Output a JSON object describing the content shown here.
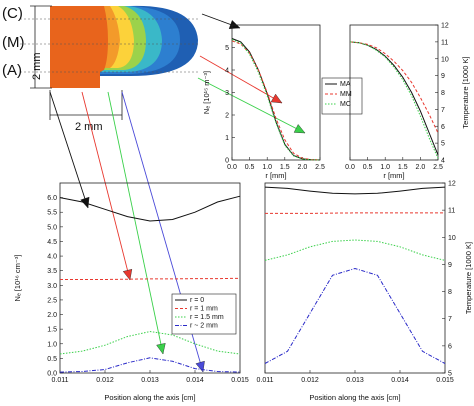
{
  "diagram": {
    "plasma_labels": [
      "(C)",
      "(M)",
      "(A)"
    ],
    "dim_vertical": "2 mm",
    "dim_horizontal": "2 mm",
    "plasma_colors": [
      "#e8641c",
      "#f39a2a",
      "#fcd23a",
      "#9cd24b",
      "#3ab8c8",
      "#2d7fd0",
      "#1f5fb3"
    ],
    "arrow_colors": {
      "black": "#111111",
      "red": "#e8382f",
      "green": "#3ad04a",
      "blue": "#4a4ad8"
    }
  },
  "chart_data": [
    {
      "id": "ne-radial",
      "type": "line",
      "xlabel": "r [mm]",
      "ylabel": "Nₑ [10¹⁵ m⁻³]",
      "xlim": [
        0,
        2.5
      ],
      "ylim": [
        0,
        6
      ],
      "xticks": [
        "0.0",
        "0.5",
        "1.0",
        "1.5",
        "2.0",
        "2.5"
      ],
      "yticks": [
        "0",
        "1",
        "2",
        "3",
        "4",
        "5"
      ],
      "legend": [
        "MA",
        "MM",
        "MC"
      ],
      "series": [
        {
          "name": "MA",
          "color": "#111111",
          "dash": "",
          "x": [
            0,
            0.25,
            0.5,
            0.75,
            1.0,
            1.25,
            1.5,
            1.75,
            2.0,
            2.25,
            2.5
          ],
          "y": [
            5.4,
            5.25,
            4.8,
            4.0,
            2.95,
            1.7,
            0.7,
            0.2,
            0.05,
            0.02,
            0
          ]
        },
        {
          "name": "MM",
          "color": "#e8382f",
          "dash": "3,2",
          "x": [
            0,
            0.25,
            0.5,
            0.75,
            1.0,
            1.25,
            1.5,
            1.75,
            2.0,
            2.25,
            2.5
          ],
          "y": [
            5.3,
            5.15,
            4.75,
            4.0,
            3.0,
            1.85,
            0.9,
            0.3,
            0.08,
            0.02,
            0
          ]
        },
        {
          "name": "MC",
          "color": "#3ad04a",
          "dash": "1.5,1.5",
          "x": [
            0,
            0.25,
            0.5,
            0.75,
            1.0,
            1.25,
            1.5,
            1.75,
            2.0,
            2.25,
            2.5
          ],
          "y": [
            5.35,
            5.2,
            4.7,
            3.9,
            2.85,
            1.65,
            0.65,
            0.18,
            0.04,
            0.01,
            0
          ]
        }
      ]
    },
    {
      "id": "temp-radial",
      "type": "line",
      "xlabel": "r [mm]",
      "ylabel": "Temperature [1000 K]",
      "xlim": [
        0,
        2.5
      ],
      "ylim": [
        4,
        12
      ],
      "xticks": [
        "0.0",
        "0.5",
        "1.0",
        "1.5",
        "2.0",
        "2.5"
      ],
      "yticks": [
        "4",
        "5",
        "6",
        "7",
        "8",
        "9",
        "10",
        "11",
        "12"
      ],
      "series": [
        {
          "name": "MA",
          "color": "#111111",
          "dash": "",
          "x": [
            0,
            0.25,
            0.5,
            0.75,
            1.0,
            1.25,
            1.5,
            1.75,
            2.0,
            2.25,
            2.5
          ],
          "y": [
            11.0,
            10.95,
            10.8,
            10.55,
            10.15,
            9.6,
            8.9,
            8.0,
            6.9,
            5.6,
            4.3
          ]
        },
        {
          "name": "MM",
          "color": "#e8382f",
          "dash": "3,2",
          "x": [
            0,
            0.25,
            0.5,
            0.75,
            1.0,
            1.25,
            1.5,
            1.75,
            2.0,
            2.25,
            2.5
          ],
          "y": [
            11.0,
            10.95,
            10.85,
            10.65,
            10.3,
            9.85,
            9.3,
            8.6,
            7.7,
            6.7,
            5.6
          ]
        },
        {
          "name": "MC",
          "color": "#3ad04a",
          "dash": "1.5,1.5",
          "x": [
            0,
            0.25,
            0.5,
            0.75,
            1.0,
            1.25,
            1.5,
            1.75,
            2.0,
            2.25,
            2.5
          ],
          "y": [
            11.0,
            10.95,
            10.8,
            10.5,
            10.1,
            9.5,
            8.75,
            7.8,
            6.6,
            5.3,
            4.1
          ]
        }
      ]
    },
    {
      "id": "ne-axial",
      "type": "line",
      "xlabel": "Position along the axis [cm]",
      "ylabel": "Nₑ [10¹⁶ cm⁻³]",
      "xlim": [
        0.011,
        0.015
      ],
      "ylim": [
        0,
        6.5
      ],
      "xticks": [
        "0.011",
        "0.012",
        "0.013",
        "0.014",
        "0.015"
      ],
      "yticks": [
        "0.0",
        "0.5",
        "1.0",
        "1.5",
        "2.0",
        "2.5",
        "3.0",
        "3.5",
        "4.0",
        "4.5",
        "5.0",
        "5.5",
        "6.0"
      ],
      "legend": [
        "r = 0",
        "r = 1 mm",
        "r = 1.5 mm",
        "r ~ 2 mm"
      ],
      "series": [
        {
          "name": "r = 0",
          "color": "#111111",
          "dash": "",
          "x": [
            0.011,
            0.0115,
            0.012,
            0.0125,
            0.013,
            0.0135,
            0.014,
            0.0145,
            0.015
          ],
          "y": [
            6.0,
            5.85,
            5.6,
            5.35,
            5.2,
            5.25,
            5.5,
            5.85,
            6.05
          ]
        },
        {
          "name": "r = 1 mm",
          "color": "#e8382f",
          "dash": "3,2",
          "x": [
            0.011,
            0.0115,
            0.012,
            0.0125,
            0.013,
            0.0135,
            0.014,
            0.0145,
            0.015
          ],
          "y": [
            3.2,
            3.2,
            3.2,
            3.21,
            3.22,
            3.22,
            3.23,
            3.23,
            3.24
          ]
        },
        {
          "name": "r = 1.5 mm",
          "color": "#3ad04a",
          "dash": "1.5,1.5",
          "x": [
            0.011,
            0.0115,
            0.012,
            0.0125,
            0.013,
            0.0135,
            0.014,
            0.0145,
            0.015
          ],
          "y": [
            0.65,
            0.75,
            0.95,
            1.25,
            1.42,
            1.3,
            1.0,
            0.75,
            0.65
          ]
        },
        {
          "name": "r ~ 2 mm",
          "color": "#2a2ac8",
          "dash": "4,1.5,1,1.5",
          "x": [
            0.011,
            0.0115,
            0.012,
            0.0125,
            0.013,
            0.0135,
            0.014,
            0.0145,
            0.015
          ],
          "y": [
            0.03,
            0.05,
            0.12,
            0.35,
            0.52,
            0.4,
            0.15,
            0.05,
            0.03
          ]
        }
      ]
    },
    {
      "id": "temp-axial",
      "type": "line",
      "xlabel": "Position along the axis [cm]",
      "ylabel": "Temperature [1000 K]",
      "xlim": [
        0.011,
        0.015
      ],
      "ylim": [
        5,
        12
      ],
      "xticks": [
        "0.011",
        "0.012",
        "0.013",
        "0.014",
        "0.015"
      ],
      "yticks": [
        "5",
        "6",
        "7",
        "8",
        "9",
        "10",
        "11",
        "12"
      ],
      "series": [
        {
          "name": "r = 0",
          "color": "#111111",
          "dash": "",
          "x": [
            0.011,
            0.0115,
            0.012,
            0.0125,
            0.013,
            0.0135,
            0.014,
            0.0145,
            0.015
          ],
          "y": [
            11.85,
            11.8,
            11.7,
            11.62,
            11.6,
            11.62,
            11.7,
            11.8,
            11.85
          ]
        },
        {
          "name": "r = 1 mm",
          "color": "#e8382f",
          "dash": "3,2",
          "x": [
            0.011,
            0.0115,
            0.012,
            0.0125,
            0.013,
            0.0135,
            0.014,
            0.0145,
            0.015
          ],
          "y": [
            10.88,
            10.88,
            10.88,
            10.89,
            10.9,
            10.9,
            10.9,
            10.9,
            10.9
          ]
        },
        {
          "name": "r = 1.5 mm",
          "color": "#3ad04a",
          "dash": "1.5,1.5",
          "x": [
            0.011,
            0.0115,
            0.012,
            0.0125,
            0.013,
            0.0135,
            0.014,
            0.0145,
            0.015
          ],
          "y": [
            9.15,
            9.35,
            9.65,
            9.85,
            9.9,
            9.85,
            9.65,
            9.35,
            9.15
          ]
        },
        {
          "name": "r ~ 2 mm",
          "color": "#2a2ac8",
          "dash": "4,1.5,1,1.5",
          "x": [
            0.011,
            0.0115,
            0.012,
            0.0125,
            0.013,
            0.0135,
            0.014,
            0.0145,
            0.015
          ],
          "y": [
            5.35,
            5.8,
            7.2,
            8.6,
            8.85,
            8.6,
            7.2,
            5.8,
            5.35
          ]
        }
      ]
    }
  ]
}
